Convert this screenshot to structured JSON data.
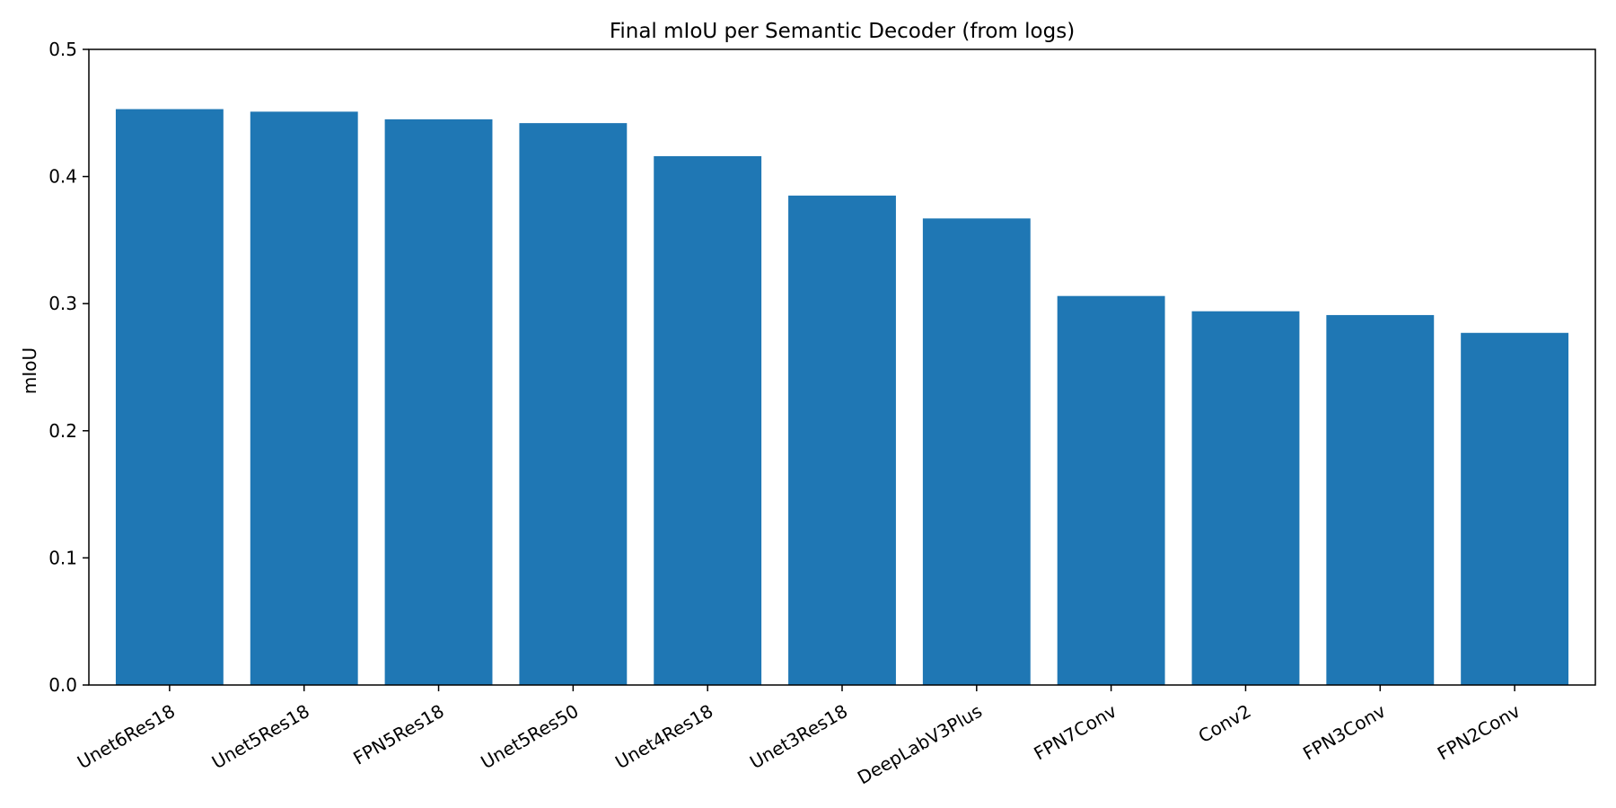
{
  "chart_data": {
    "type": "bar",
    "title": "Final mIoU per Semantic Decoder (from logs)",
    "xlabel": "",
    "ylabel": "mIoU",
    "categories": [
      "Unet6Res18",
      "Unet5Res18",
      "FPN5Res18",
      "Unet5Res50",
      "Unet4Res18",
      "Unet3Res18",
      "DeepLabV3Plus",
      "FPN7Conv",
      "Conv2",
      "FPN3Conv",
      "FPN2Conv"
    ],
    "values": [
      0.453,
      0.451,
      0.445,
      0.442,
      0.416,
      0.385,
      0.367,
      0.306,
      0.294,
      0.291,
      0.277
    ],
    "ylim": [
      0,
      0.5
    ],
    "yticks": [
      0.0,
      0.1,
      0.2,
      0.3,
      0.4,
      0.5
    ],
    "ytick_labels": [
      "0.0",
      "0.1",
      "0.2",
      "0.3",
      "0.4",
      "0.5"
    ],
    "grid": false,
    "bar_color": "#1f77b4"
  }
}
